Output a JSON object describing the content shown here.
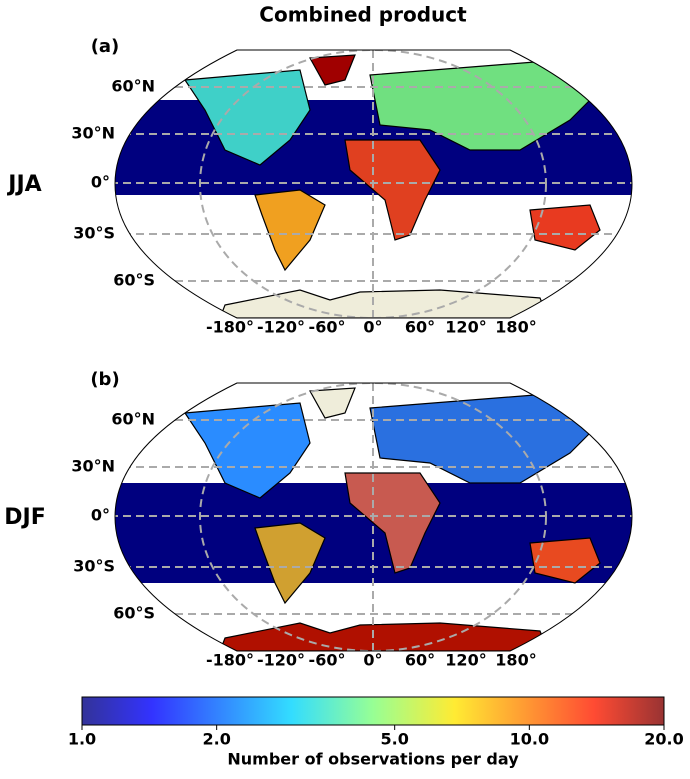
{
  "title": "Combined product",
  "panels": [
    {
      "label": "(a)",
      "season": "JJA"
    },
    {
      "label": "(b)",
      "season": "DJF"
    }
  ],
  "lat_labels": [
    "60°N",
    "30°N",
    "0°",
    "30°S",
    "60°S"
  ],
  "lon_labels": [
    "-180°",
    "-120°",
    "-60°",
    "0°",
    "60°",
    "120°",
    "180°"
  ],
  "colorbar": {
    "label": "Number of observations per day",
    "log_scale": true,
    "lim": [
      1,
      20
    ],
    "ticks": [
      {
        "value": 1,
        "label": "1.0"
      },
      {
        "value": 2,
        "label": "2.0"
      },
      {
        "value": 5,
        "label": "5.0"
      },
      {
        "value": 10,
        "label": "10.0"
      },
      {
        "value": 20,
        "label": "20.0"
      }
    ]
  }
}
